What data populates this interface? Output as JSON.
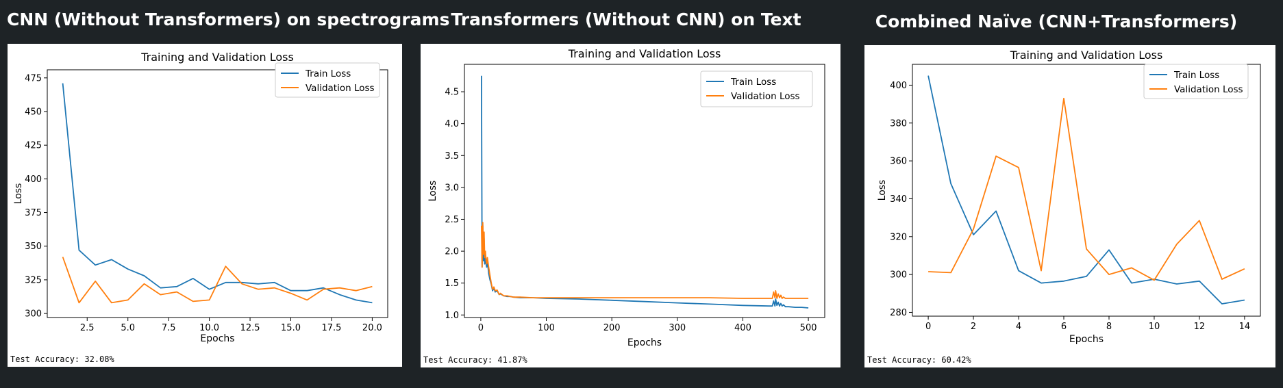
{
  "panels": [
    {
      "heading": "CNN (Without Transformers) on spectrograms",
      "test_accuracy": "Test Accuracy: 32.08%"
    },
    {
      "heading": "Transformers (Without CNN) on Text",
      "test_accuracy": "Test Accuracy: 41.87%"
    },
    {
      "heading": "Combined Naïve (CNN+Transformers)",
      "test_accuracy": "Test Accuracy: 60.42%"
    }
  ],
  "colors": {
    "train": "#1f77b4",
    "validation": "#ff7f0e"
  },
  "chart_data": [
    {
      "type": "line",
      "title": "Training and Validation Loss",
      "xlabel": "Epochs",
      "ylabel": "Loss",
      "xlim": [
        0.05,
        20.95
      ],
      "ylim": [
        297,
        481
      ],
      "xticks": [
        2.5,
        5.0,
        7.5,
        10.0,
        12.5,
        15.0,
        17.5,
        20.0
      ],
      "xtick_labels": [
        "2.5",
        "5.0",
        "7.5",
        "10.0",
        "12.5",
        "15.0",
        "17.5",
        "20.0"
      ],
      "yticks": [
        300,
        325,
        350,
        375,
        400,
        425,
        450,
        475
      ],
      "ytick_labels": [
        "300",
        "325",
        "350",
        "375",
        "400",
        "425",
        "450",
        "475"
      ],
      "legend": "top-right",
      "series": [
        {
          "name": "Train Loss",
          "x": [
            1,
            2,
            3,
            4,
            5,
            6,
            7,
            8,
            9,
            10,
            11,
            12,
            13,
            14,
            15,
            16,
            17,
            18,
            19,
            20
          ],
          "values": [
            471,
            347,
            336,
            340,
            333,
            328,
            319,
            320,
            326,
            318,
            323,
            323,
            322,
            323,
            317,
            317,
            319,
            314,
            310,
            308
          ]
        },
        {
          "name": "Validation Loss",
          "x": [
            1,
            2,
            3,
            4,
            5,
            6,
            7,
            8,
            9,
            10,
            11,
            12,
            13,
            14,
            15,
            16,
            17,
            18,
            19,
            20
          ],
          "values": [
            342,
            308,
            324,
            308,
            310,
            322,
            314,
            316,
            309,
            310,
            335,
            322,
            318,
            319,
            315,
            310,
            318,
            319,
            317,
            320
          ]
        }
      ]
    },
    {
      "type": "line",
      "title": "Training and Validation Loss",
      "xlabel": "Epochs",
      "ylabel": "Loss",
      "xlim": [
        -25,
        525
      ],
      "ylim": [
        0.96,
        4.93
      ],
      "xticks": [
        0,
        100,
        200,
        300,
        400,
        500
      ],
      "xtick_labels": [
        "0",
        "100",
        "200",
        "300",
        "400",
        "500"
      ],
      "yticks": [
        1.0,
        1.5,
        2.0,
        2.5,
        3.0,
        3.5,
        4.0,
        4.5
      ],
      "ytick_labels": [
        "1.0",
        "1.5",
        "2.0",
        "2.5",
        "3.0",
        "3.5",
        "4.0",
        "4.5"
      ],
      "legend": "top-right",
      "series": [
        {
          "name": "Train Loss",
          "x": [
            1,
            2,
            3,
            4,
            5,
            6,
            7,
            8,
            9,
            10,
            12,
            14,
            16,
            18,
            20,
            22,
            25,
            28,
            30,
            35,
            40,
            45,
            50,
            60,
            80,
            100,
            150,
            200,
            250,
            300,
            350,
            400,
            440,
            445,
            447,
            449,
            450,
            452,
            454,
            456,
            458,
            460,
            462,
            465,
            470,
            480,
            490,
            500
          ],
          "values": [
            4.75,
            1.75,
            2.4,
            1.85,
            2.2,
            1.8,
            1.95,
            1.8,
            1.75,
            1.85,
            1.65,
            1.55,
            1.48,
            1.38,
            1.42,
            1.36,
            1.38,
            1.32,
            1.33,
            1.3,
            1.29,
            1.29,
            1.28,
            1.27,
            1.27,
            1.26,
            1.25,
            1.23,
            1.21,
            1.19,
            1.17,
            1.15,
            1.14,
            1.14,
            1.22,
            1.14,
            1.25,
            1.15,
            1.2,
            1.14,
            1.18,
            1.14,
            1.16,
            1.13,
            1.13,
            1.12,
            1.12,
            1.11
          ]
        },
        {
          "name": "Validation Loss",
          "x": [
            1,
            2,
            3,
            4,
            5,
            6,
            7,
            8,
            9,
            10,
            12,
            14,
            16,
            18,
            20,
            22,
            25,
            28,
            30,
            35,
            40,
            45,
            50,
            60,
            80,
            100,
            150,
            200,
            250,
            300,
            350,
            400,
            440,
            445,
            447,
            449,
            450,
            452,
            454,
            456,
            458,
            460,
            462,
            465,
            470,
            480,
            490,
            500
          ],
          "values": [
            2.4,
            1.75,
            2.45,
            1.95,
            2.3,
            1.9,
            2.0,
            1.85,
            1.8,
            1.9,
            1.75,
            1.62,
            1.5,
            1.4,
            1.44,
            1.38,
            1.39,
            1.32,
            1.34,
            1.3,
            1.3,
            1.29,
            1.28,
            1.28,
            1.27,
            1.27,
            1.27,
            1.27,
            1.27,
            1.27,
            1.27,
            1.26,
            1.26,
            1.26,
            1.36,
            1.27,
            1.38,
            1.26,
            1.33,
            1.27,
            1.31,
            1.26,
            1.28,
            1.26,
            1.26,
            1.26,
            1.26,
            1.26
          ]
        }
      ]
    },
    {
      "type": "line",
      "title": "Training and Validation Loss",
      "xlabel": "Epochs",
      "ylabel": "Loss",
      "xlim": [
        -0.7,
        14.7
      ],
      "ylim": [
        278,
        411
      ],
      "xticks": [
        0,
        2,
        4,
        6,
        8,
        10,
        12,
        14
      ],
      "xtick_labels": [
        "0",
        "2",
        "4",
        "6",
        "8",
        "10",
        "12",
        "14"
      ],
      "yticks": [
        280,
        300,
        320,
        340,
        360,
        380,
        400
      ],
      "ytick_labels": [
        "280",
        "300",
        "320",
        "340",
        "360",
        "380",
        "400"
      ],
      "legend": "top-right",
      "series": [
        {
          "name": "Train Loss",
          "x": [
            0,
            1,
            2,
            3,
            4,
            5,
            6,
            7,
            8,
            9,
            10,
            11,
            12,
            13,
            14
          ],
          "values": [
            405,
            348,
            321,
            333.5,
            302,
            295.5,
            296.5,
            299,
            313,
            295.5,
            297.5,
            295,
            296.5,
            284.5,
            286.5
          ]
        },
        {
          "name": "Validation Loss",
          "x": [
            0,
            1,
            2,
            3,
            4,
            5,
            6,
            7,
            8,
            9,
            10,
            11,
            12,
            13,
            14
          ],
          "values": [
            301.5,
            301,
            324,
            362.5,
            356.5,
            302,
            393,
            313.5,
            300,
            303.5,
            297,
            316,
            328.5,
            297.5,
            303
          ]
        }
      ]
    }
  ]
}
